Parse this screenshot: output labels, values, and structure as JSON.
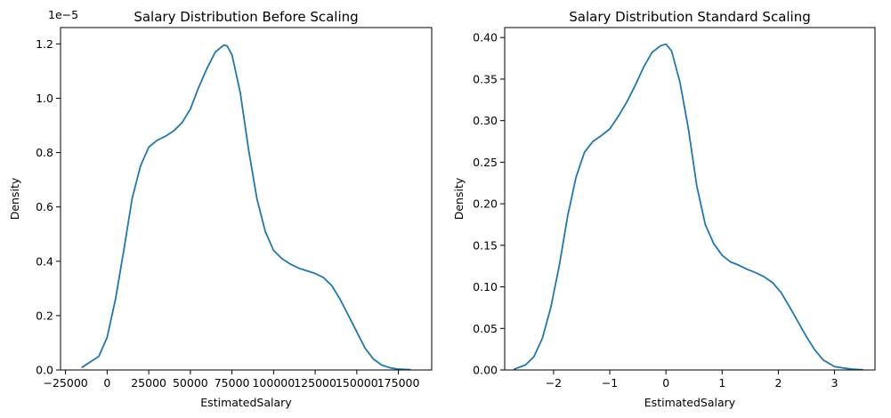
{
  "colors": {
    "line": "#1f77b4"
  },
  "chart_data": [
    {
      "type": "line",
      "title": "Salary Distribution Before Scaling",
      "xlabel": "EstimatedSalary",
      "ylabel": "Density",
      "offset_text": "1e−5",
      "xlim": [
        -28000,
        195000
      ],
      "ylim": [
        0,
        1.26
      ],
      "x_ticks": [
        -25000,
        0,
        25000,
        50000,
        75000,
        100000,
        125000,
        150000,
        175000
      ],
      "x_tick_labels": [
        "−25000",
        "0",
        "25000",
        "50000",
        "75000",
        "100000",
        "125000",
        "150000",
        "175000"
      ],
      "y_ticks": [
        0,
        0.2,
        0.4,
        0.6,
        0.8,
        1.0,
        1.2
      ],
      "y_tick_labels": [
        "0.0",
        "0.2",
        "0.4",
        "0.6",
        "0.8",
        "1.0",
        "1.2"
      ],
      "series": [
        {
          "x": [
            -15000,
            -5000,
            0,
            5000,
            10000,
            15000,
            20000,
            25000,
            30000,
            35000,
            40000,
            45000,
            50000,
            55000,
            60000,
            65000,
            70000,
            72000,
            75000,
            80000,
            85000,
            90000,
            95000,
            100000,
            105000,
            110000,
            115000,
            120000,
            125000,
            130000,
            135000,
            140000,
            145000,
            150000,
            155000,
            160000,
            165000,
            170000,
            175000,
            182000
          ],
          "y": [
            0.01,
            0.05,
            0.12,
            0.26,
            0.44,
            0.63,
            0.75,
            0.82,
            0.845,
            0.86,
            0.88,
            0.91,
            0.96,
            1.04,
            1.11,
            1.17,
            1.195,
            1.193,
            1.16,
            1.02,
            0.81,
            0.63,
            0.51,
            0.44,
            0.41,
            0.39,
            0.375,
            0.365,
            0.355,
            0.34,
            0.31,
            0.26,
            0.2,
            0.14,
            0.08,
            0.04,
            0.018,
            0.008,
            0.003,
            0.001
          ]
        }
      ]
    },
    {
      "type": "line",
      "title": "Salary Distribution Standard Scaling",
      "xlabel": "EstimatedSalary",
      "ylabel": "Density",
      "xlim": [
        -2.87,
        3.72
      ],
      "ylim": [
        0,
        0.412
      ],
      "x_ticks": [
        -2,
        -1,
        0,
        1,
        2,
        3
      ],
      "x_tick_labels": [
        "−2",
        "−1",
        "0",
        "1",
        "2",
        "3"
      ],
      "y_ticks": [
        0,
        0.05,
        0.1,
        0.15,
        0.2,
        0.25,
        0.3,
        0.35,
        0.4
      ],
      "y_tick_labels": [
        "0.00",
        "0.05",
        "0.10",
        "0.15",
        "0.20",
        "0.25",
        "0.30",
        "0.35",
        "0.40"
      ],
      "series": [
        {
          "x": [
            -2.7,
            -2.5,
            -2.35,
            -2.2,
            -2.05,
            -1.9,
            -1.75,
            -1.6,
            -1.45,
            -1.3,
            -1.15,
            -1.0,
            -0.85,
            -0.7,
            -0.55,
            -0.4,
            -0.25,
            -0.1,
            0.0,
            0.1,
            0.25,
            0.4,
            0.55,
            0.7,
            0.85,
            1.0,
            1.15,
            1.3,
            1.45,
            1.6,
            1.75,
            1.9,
            2.05,
            2.2,
            2.35,
            2.5,
            2.65,
            2.8,
            3.0,
            3.3,
            3.5
          ],
          "y": [
            0.001,
            0.006,
            0.016,
            0.038,
            0.075,
            0.125,
            0.185,
            0.232,
            0.262,
            0.275,
            0.282,
            0.29,
            0.305,
            0.322,
            0.342,
            0.364,
            0.382,
            0.39,
            0.392,
            0.384,
            0.346,
            0.29,
            0.221,
            0.175,
            0.152,
            0.138,
            0.13,
            0.126,
            0.121,
            0.117,
            0.112,
            0.105,
            0.093,
            0.076,
            0.058,
            0.04,
            0.024,
            0.012,
            0.004,
            0.001,
            0.0003
          ]
        }
      ]
    }
  ]
}
